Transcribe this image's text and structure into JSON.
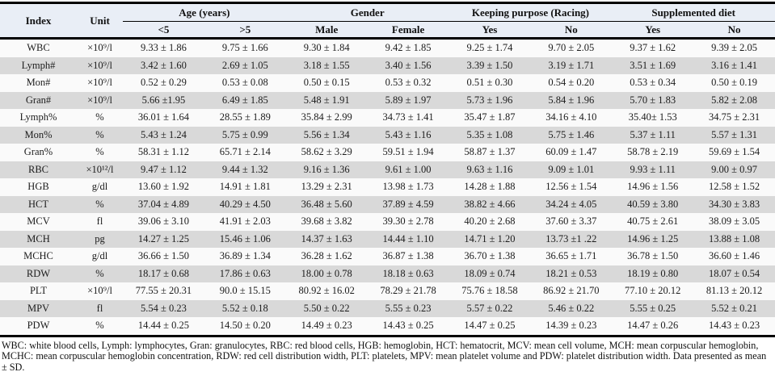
{
  "header": {
    "index_label": "Index",
    "unit_label": "Unit",
    "groups": [
      {
        "label": "Age (years)",
        "subcols": [
          "<5",
          ">5"
        ]
      },
      {
        "label": "Gender",
        "subcols": [
          "Male",
          "Female"
        ]
      },
      {
        "label": "Keeping purpose (Racing)",
        "subcols": [
          "Yes",
          "No"
        ]
      },
      {
        "label": "Supplemented diet",
        "subcols": [
          "Yes",
          "No"
        ]
      }
    ]
  },
  "rows": [
    {
      "index": "WBC",
      "unit": "×10⁹/l",
      "values": [
        "9.33 ± 1.86",
        "9.75 ± 1.66",
        "9.30 ± 1.84",
        "9.42 ± 1.85",
        "9.25 ± 1.74",
        "9.70 ± 2.05",
        "9.37 ± 1.62",
        "9.39 ± 2.05"
      ]
    },
    {
      "index": "Lymph#",
      "unit": "×10⁹/l",
      "values": [
        "3.42 ± 1.60",
        "2.69 ± 1.05",
        "3.18 ± 1.55",
        "3.40 ± 1.56",
        "3.39 ± 1.50",
        "3.19 ± 1.71",
        "3.51 ± 1.69",
        "3.16 ± 1.41"
      ]
    },
    {
      "index": "Mon#",
      "unit": "×10⁹/l",
      "values": [
        "0.52 ± 0.29",
        "0.53 ± 0.08",
        "0.50 ± 0.15",
        "0.53 ± 0.32",
        "0.51 ± 0.30",
        "0.54 ± 0.20",
        "0.53 ± 0.34",
        "0.50 ± 0.19"
      ]
    },
    {
      "index": "Gran#",
      "unit": "×10⁹/l",
      "values": [
        "5.66 ±1.95",
        "6.49 ± 1.85",
        "5.48 ± 1.91",
        "5.89 ± 1.97",
        "5.73 ± 1.96",
        "5.84 ± 1.96",
        "5.70 ± 1.83",
        "5.82 ± 2.08"
      ]
    },
    {
      "index": "Lymph%",
      "unit": "%",
      "values": [
        "36.01 ± 1.64",
        "28.55 ± 1.89",
        "35.84 ± 2.99",
        "34.73 ± 1.41",
        "35.47 ± 1.87",
        "34.16 ± 4.10",
        "35.40± 1.53",
        "34.75 ± 2.31"
      ]
    },
    {
      "index": "Mon%",
      "unit": "%",
      "values": [
        "5.43 ± 1.24",
        "5.75 ± 0.99",
        "5.56 ± 1.34",
        "5.43 ± 1.16",
        "5.35 ± 1.08",
        "5.75 ± 1.46",
        "5.37 ± 1.11",
        "5.57 ± 1.31"
      ]
    },
    {
      "index": "Gran%",
      "unit": "%",
      "values": [
        "58.31 ± 1.12",
        "65.71 ± 2.14",
        "58.62 ± 3.29",
        "59.51 ± 1.94",
        "58.87 ± 1.37",
        "60.09 ± 1.47",
        "58.78 ± 2.19",
        "59.69 ± 1.54"
      ]
    },
    {
      "index": "RBC",
      "unit": "×10¹²/l",
      "values": [
        "9.47 ± 1.12",
        "9.44 ± 1.32",
        "9.16 ± 1.36",
        "9.61 ± 1.00",
        "9.63 ± 1.16",
        "9.09 ± 1.01",
        "9.93 ± 1.11",
        "9.00 ± 0.97"
      ]
    },
    {
      "index": "HGB",
      "unit": "g/dl",
      "values": [
        "13.60 ± 1.92",
        "14.91 ± 1.81",
        "13.29 ± 2.31",
        "13.98 ± 1.73",
        "14.28 ± 1.88",
        "12.56 ± 1.54",
        "14.96 ± 1.56",
        "12.58 ± 1.52"
      ]
    },
    {
      "index": "HCT",
      "unit": "%",
      "values": [
        "37.04 ± 4.89",
        "40.29 ± 4.50",
        "36.48 ± 5.60",
        "37.89 ± 4.59",
        "38.82 ± 4.66",
        "34.24 ± 4.05",
        "40.59 ± 3.80",
        "34.30 ± 3.83"
      ]
    },
    {
      "index": "MCV",
      "unit": "fl",
      "values": [
        "39.06 ± 3.10",
        "41.91 ± 2.03",
        "39.68 ± 3.82",
        "39.30 ± 2.78",
        "40.20 ± 2.68",
        "37.60 ± 3.37",
        "40.75 ± 2.61",
        "38.09 ± 3.05"
      ]
    },
    {
      "index": "MCH",
      "unit": "pg",
      "values": [
        "14.27 ± 1.25",
        "15.46 ± 1.06",
        "14.37 ± 1.63",
        "14.44 ± 1.10",
        "14.71 ± 1.20",
        "13.73 ±1 .22",
        "14.96 ± 1.25",
        "13.88 ± 1.08"
      ]
    },
    {
      "index": "MCHC",
      "unit": "g/dl",
      "values": [
        "36.66 ± 1.50",
        "36.89 ± 1.34",
        "36.28 ± 1.62",
        "36.87 ± 1.38",
        "36.70 ± 1.38",
        "36.65 ± 1.71",
        "36.78 ± 1.50",
        "36.60 ± 1.46"
      ]
    },
    {
      "index": "RDW",
      "unit": "%",
      "values": [
        "18.17 ± 0.68",
        "17.86 ± 0.63",
        "18.00 ± 0.78",
        "18.18 ± 0.63",
        "18.09 ± 0.74",
        "18.21 ± 0.53",
        "18.19 ± 0.80",
        "18.07 ± 0.54"
      ]
    },
    {
      "index": "PLT",
      "unit": "×10⁹/l",
      "values": [
        "77.55 ± 20.31",
        "90.0 ± 15.15",
        "80.92 ± 16.02",
        "78.29 ± 21.78",
        "75.76 ± 18.58",
        "86.92 ± 21.70",
        "77.10 ± 20.12",
        "81.13 ± 20.12"
      ]
    },
    {
      "index": "MPV",
      "unit": "fl",
      "values": [
        "5.54 ± 0.23",
        "5.52 ± 0.18",
        "5.50 ± 0.22",
        "5.55 ± 0.23",
        "5.57 ± 0.22",
        "5.46 ± 0.22",
        "5.55 ± 0.25",
        "5.52 ± 0.21"
      ]
    },
    {
      "index": "PDW",
      "unit": "%",
      "values": [
        "14.44 ± 0.25",
        "14.50 ± 0.20",
        "14.49 ± 0.23",
        "14.43 ± 0.25",
        "14.47 ± 0.25",
        "14.39 ± 0.23",
        "14.47 ± 0.26",
        "14.43 ± 0.23"
      ]
    }
  ],
  "footnote": "WBC: white blood cells, Lymph: lymphocytes, Gran: granulocytes, RBC: red blood cells, HGB: hemoglobin, HCT: hematocrit, MCV: mean cell volume, MCH: mean corpuscular hemoglobin, MCHC: mean corpuscular hemoglobin concentration, RDW: red cell distribution width, PLT: platelets, MPV: mean platelet volume and PDW: platelet distribution width. Data presented as mean ± SD.",
  "colors": {
    "header_bg": "#e9eef6",
    "row_shaded": "#d9d9d9",
    "row_plain": "#fafafa",
    "border": "#000000"
  }
}
